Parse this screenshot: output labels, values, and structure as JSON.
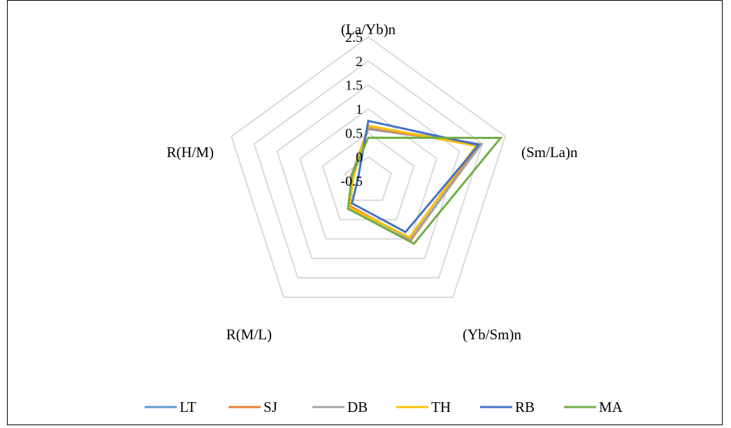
{
  "chart_data": {
    "type": "radar",
    "axes": [
      "(La/Yb)n",
      "(Sm/La)n",
      "(Yb/Sm)n",
      "R(M/L)",
      "R(H/M)"
    ],
    "range": [
      -0.5,
      2.5
    ],
    "ticks": [
      "2.5",
      "2",
      "1.5",
      "1",
      "0.5",
      "0",
      "-0.5"
    ],
    "grid": true,
    "legend_position": "bottom",
    "series": [
      {
        "name": "LT",
        "color": "#5B9BD5",
        "values": [
          0.58,
          1.96,
          1.02,
          0.15,
          -0.14
        ]
      },
      {
        "name": "SJ",
        "color": "#ED7D31",
        "values": [
          0.6,
          1.92,
          1.02,
          0.15,
          -0.13
        ]
      },
      {
        "name": "DB",
        "color": "#A5A5A5",
        "values": [
          0.62,
          1.98,
          1.0,
          0.18,
          -0.14
        ]
      },
      {
        "name": "TH",
        "color": "#FFC000",
        "values": [
          0.65,
          1.86,
          0.96,
          0.18,
          -0.18
        ]
      },
      {
        "name": "RB",
        "color": "#4472C4",
        "values": [
          0.75,
          1.92,
          0.82,
          0.08,
          -0.28
        ]
      },
      {
        "name": "MA",
        "color": "#70AD47",
        "values": [
          0.4,
          2.4,
          1.12,
          0.22,
          -0.14
        ]
      }
    ]
  }
}
